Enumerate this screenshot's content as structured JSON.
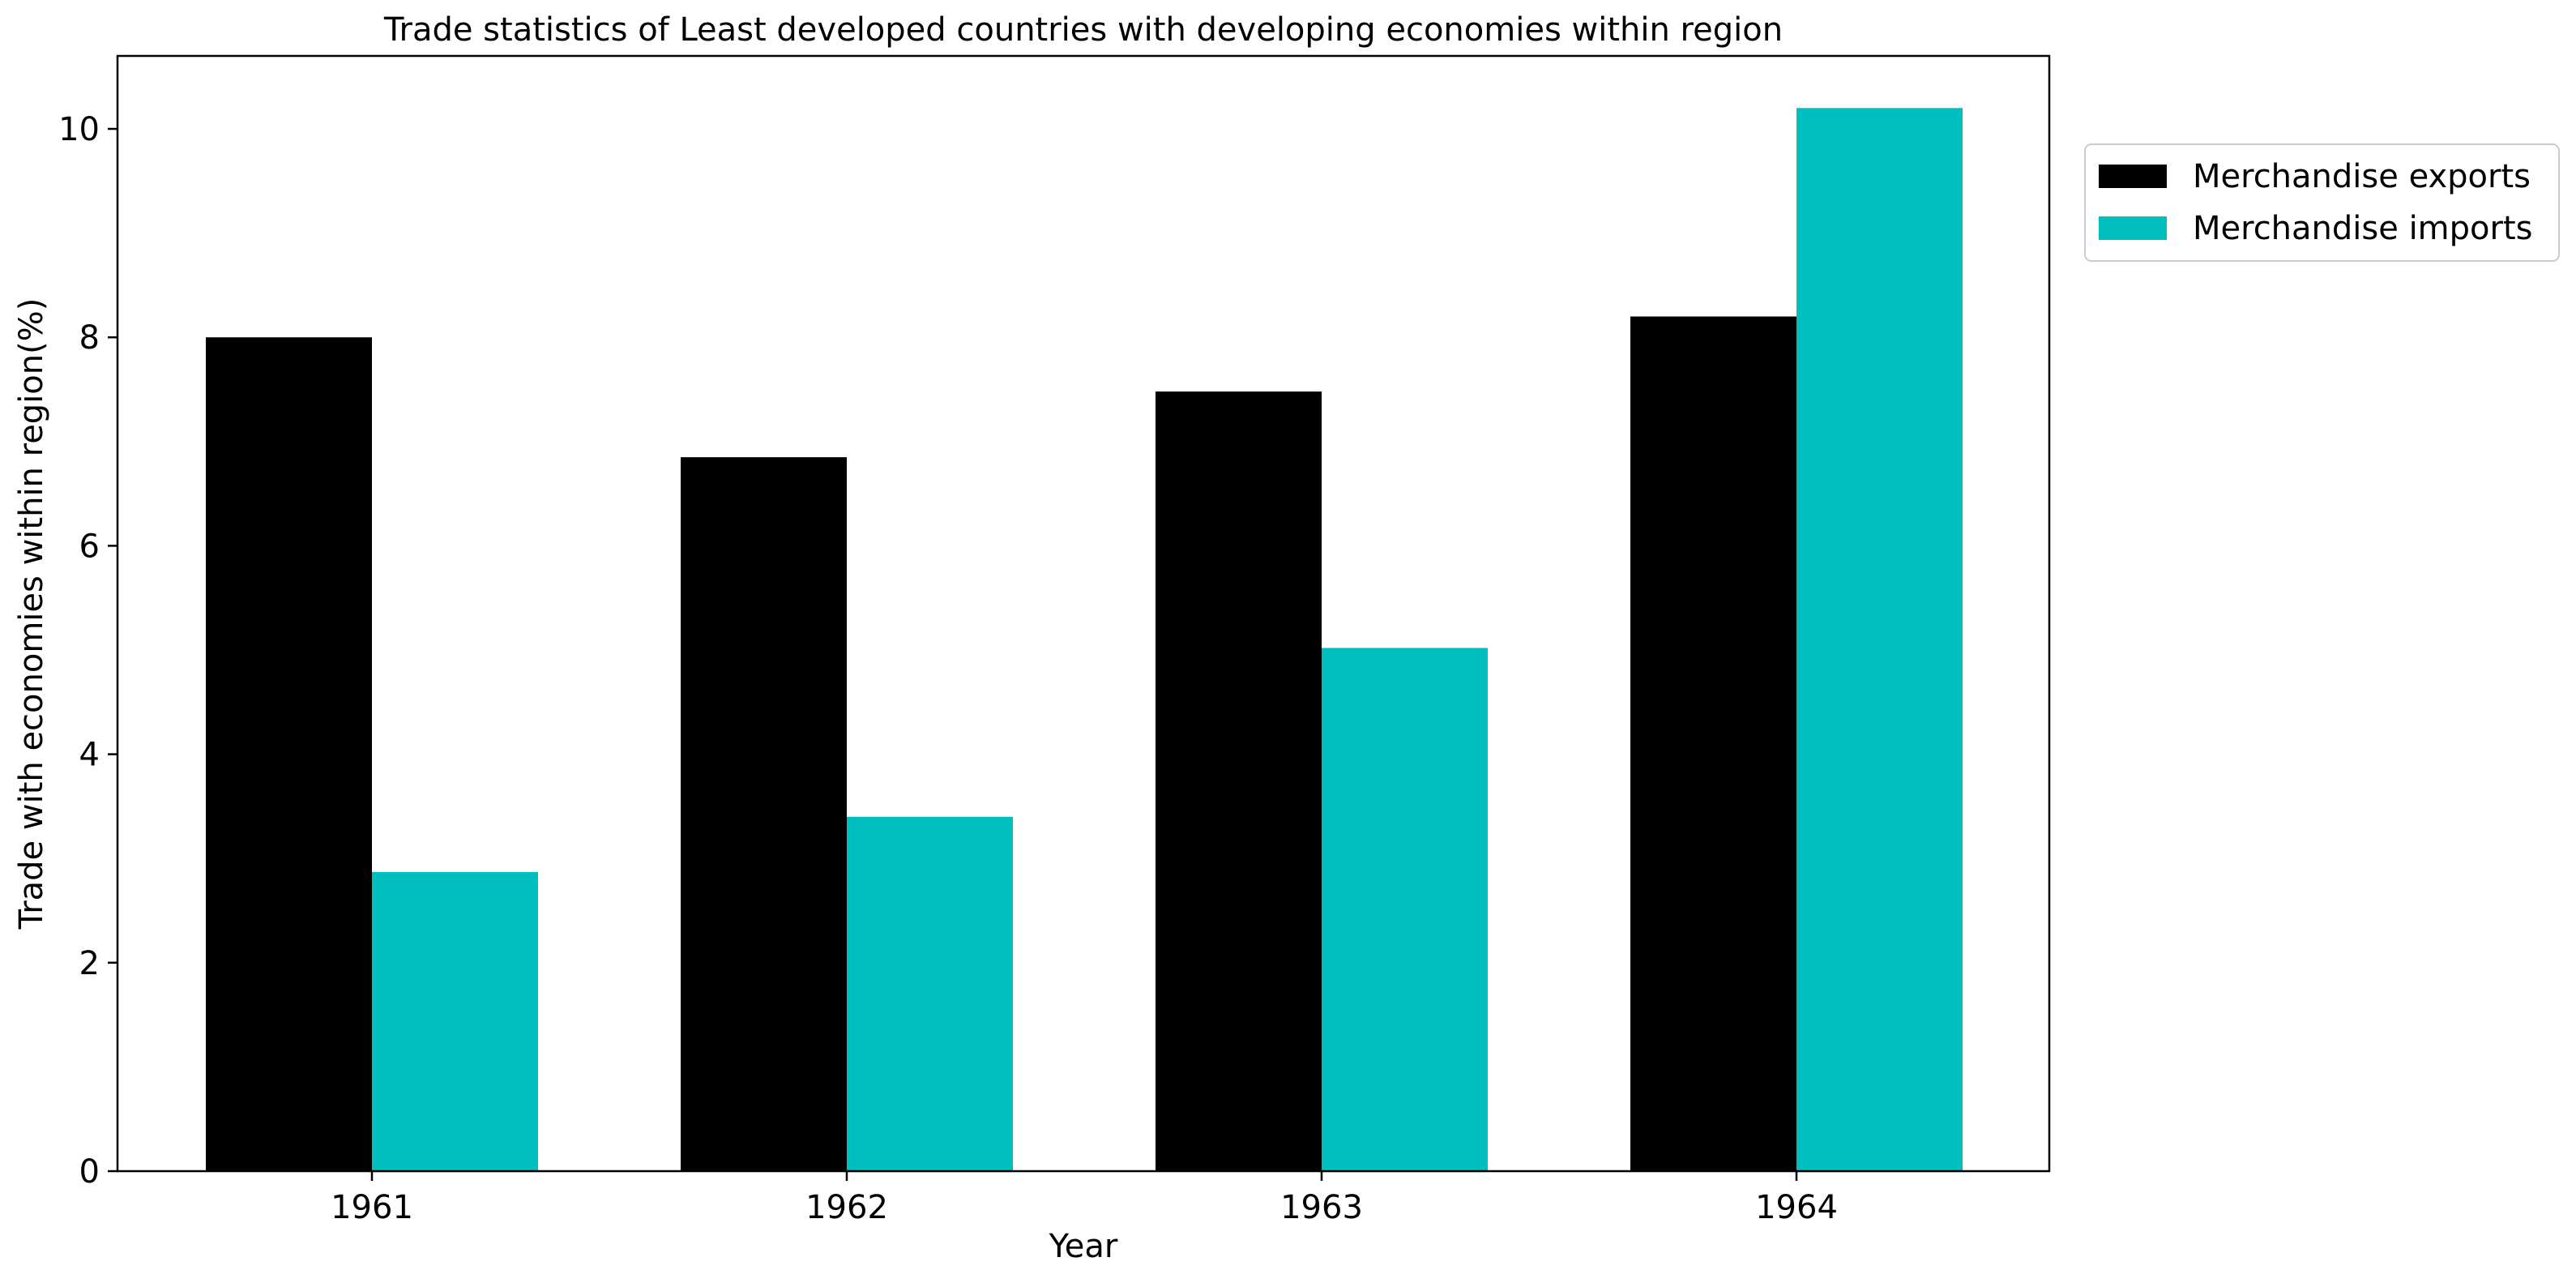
{
  "chart_data": {
    "type": "bar",
    "title": "Trade statistics of Least developed countries with developing economies within region",
    "xlabel": "Year",
    "ylabel": "Trade with economies within region(%)",
    "categories": [
      "1961",
      "1962",
      "1963",
      "1964"
    ],
    "series": [
      {
        "name": "Merchandise exports",
        "values": [
          8.0,
          6.85,
          7.48,
          8.2
        ],
        "color": "#000000"
      },
      {
        "name": "Merchandise imports",
        "values": [
          2.87,
          3.4,
          5.02,
          10.2
        ],
        "color": "#00bfbf"
      }
    ],
    "ylim": [
      0,
      10.7
    ],
    "yticks": [
      "0",
      "2",
      "4",
      "6",
      "8",
      "10"
    ],
    "grid": false,
    "legend_position": "outside-top-right"
  }
}
